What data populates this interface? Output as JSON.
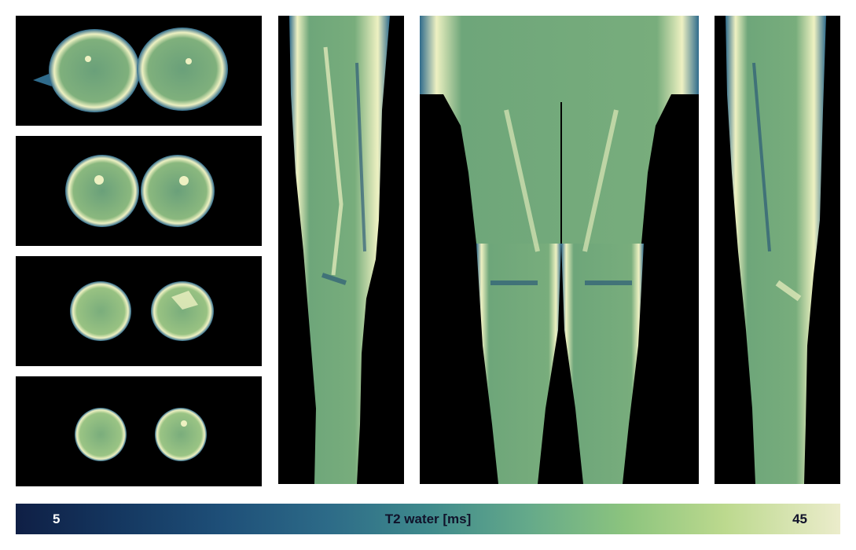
{
  "colormap": {
    "label": "T2 water [ms]",
    "min_label": "5",
    "max_label": "45",
    "colors": [
      "#0f1f45",
      "#14365f",
      "#1e4f78",
      "#2d6b88",
      "#3f8a8c",
      "#64a98a",
      "#8cc47e",
      "#bcd98e",
      "#ebeccb"
    ]
  },
  "tissue_colors": {
    "muscle": "#6ea67a",
    "bright": "#eef1c2",
    "edge": "#2f6b8c",
    "dark": "#1f4f76",
    "background": "#000000"
  }
}
